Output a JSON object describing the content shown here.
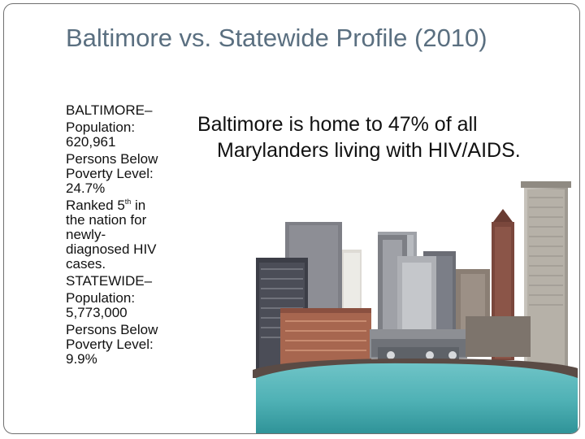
{
  "slide": {
    "title": "Baltimore vs. Statewide Profile (2010)",
    "baltimore": {
      "heading": "BALTIMORE–",
      "population_label": "Population:",
      "population_value": "620,961",
      "poverty_label_1": "Persons Below",
      "poverty_label_2": "Poverty Level:",
      "poverty_value": "24.7%",
      "rank_prefix": "Ranked 5",
      "rank_sup": "th",
      "rank_suffix": " in",
      "rank_line2": "the nation for",
      "rank_line3": "newly-",
      "rank_line4": "diagnosed HIV",
      "rank_line5": "cases."
    },
    "statewide": {
      "heading": "STATEWIDE–",
      "population_label": "Population:",
      "population_value": "5,773,000",
      "poverty_label_1": "Persons Below",
      "poverty_label_2": "Poverty Level:",
      "poverty_value": "9.9%"
    },
    "callout_line1": "Baltimore is home to 47% of all",
    "callout_line2": "Marylanders living with HIV/AIDS.",
    "illustration_icon": "city-skyline-icon"
  }
}
